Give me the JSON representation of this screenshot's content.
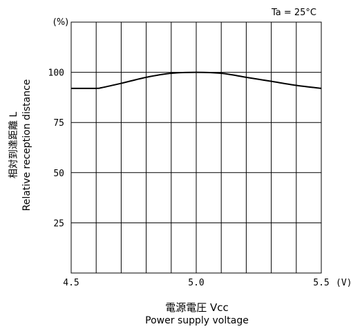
{
  "chart_data": {
    "type": "line",
    "condition": "Ta = 25°C",
    "y_unit": "(%)",
    "x_unit": "(V)",
    "ylabel_jp": "相対到達距離 L",
    "ylabel_en": "Relative reception distance",
    "xlabel_jp": "電源電圧 Vcc",
    "xlabel_en": "Power supply voltage",
    "xlim": [
      4.5,
      5.5
    ],
    "ylim": [
      0,
      125
    ],
    "x_ticks": [
      {
        "value": 4.5,
        "label": "4.5"
      },
      {
        "value": 5.0,
        "label": "5.0"
      },
      {
        "value": 5.5,
        "label": "5.5"
      }
    ],
    "y_ticks": [
      {
        "value": 25,
        "label": "25"
      },
      {
        "value": 50,
        "label": "50"
      },
      {
        "value": 75,
        "label": "75"
      },
      {
        "value": 100,
        "label": "100"
      }
    ],
    "grid": true,
    "series": [
      {
        "x": [
          4.5,
          4.6,
          4.62,
          4.7,
          4.8,
          4.9,
          5.0,
          5.1,
          5.2,
          5.3,
          5.4,
          5.5
        ],
        "y": [
          92,
          92,
          92.3,
          94.5,
          97.5,
          99.5,
          100,
          99.5,
          97.5,
          95.5,
          93.5,
          92
        ]
      }
    ]
  }
}
